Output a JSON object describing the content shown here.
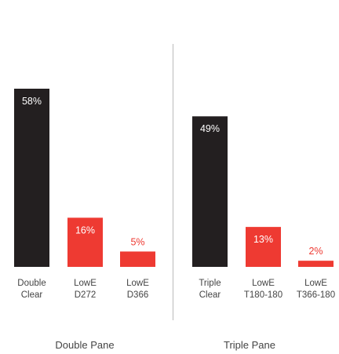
{
  "chart_data": {
    "type": "bar",
    "ylim": [
      0,
      100
    ],
    "grid": false,
    "legend": "none",
    "groups": [
      {
        "name": "Double Pane",
        "bars": [
          {
            "label": [
              "Double",
              "Clear"
            ],
            "value": 58,
            "value_label": "58%",
            "color": "#231f20",
            "label_color": "#ffffff",
            "label_inside": true
          },
          {
            "label": [
              "LowE",
              "D272"
            ],
            "value": 16,
            "value_label": "16%",
            "color": "#ee3a32",
            "label_color": "#ffffff",
            "label_inside": true
          },
          {
            "label": [
              "LowE",
              "D366"
            ],
            "value": 5,
            "value_label": "5%",
            "color": "#ee3a32",
            "label_color": "#ee3a32",
            "label_inside": false
          }
        ]
      },
      {
        "name": "Triple Pane",
        "bars": [
          {
            "label": [
              "Triple",
              "Clear"
            ],
            "value": 49,
            "value_label": "49%",
            "color": "#231f20",
            "label_color": "#ffffff",
            "label_inside": true
          },
          {
            "label": [
              "LowE",
              "T180-180"
            ],
            "value": 13,
            "value_label": "13%",
            "color": "#ee3a32",
            "label_color": "#ffffff",
            "label_inside": true
          },
          {
            "label": [
              "LowE",
              "T366-180"
            ],
            "value": 2,
            "value_label": "2%",
            "color": "#ee3a32",
            "label_color": "#ee3a32",
            "label_inside": false
          }
        ]
      }
    ]
  }
}
